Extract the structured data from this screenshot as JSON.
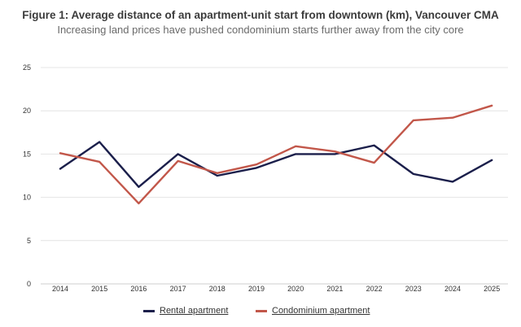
{
  "chart_data": {
    "type": "line",
    "title": "Figure 1: Average distance of an apartment-unit start from downtown (km), Vancouver CMA",
    "subtitle": "Increasing land prices have pushed condominium starts further away from the city core",
    "xlabel": "",
    "ylabel": "",
    "categories": [
      "2014",
      "2015",
      "2016",
      "2017",
      "2018",
      "2019",
      "2020",
      "2021",
      "2022",
      "2023",
      "2024",
      "2025"
    ],
    "ylim": [
      0,
      25
    ],
    "yticks": [
      0,
      5,
      10,
      15,
      20,
      25
    ],
    "grid": true,
    "legend_position": "bottom",
    "series": [
      {
        "name": "Rental apartment",
        "color": "#1b1f4b",
        "values": [
          13.3,
          16.4,
          11.2,
          15.0,
          12.5,
          13.4,
          15.0,
          15.0,
          16.0,
          12.7,
          11.8,
          14.3
        ]
      },
      {
        "name": "Condominium apartment",
        "color": "#c2574a",
        "values": [
          15.1,
          14.1,
          9.3,
          14.2,
          12.8,
          13.8,
          15.9,
          15.3,
          14.0,
          18.9,
          19.2,
          20.6
        ]
      }
    ]
  }
}
